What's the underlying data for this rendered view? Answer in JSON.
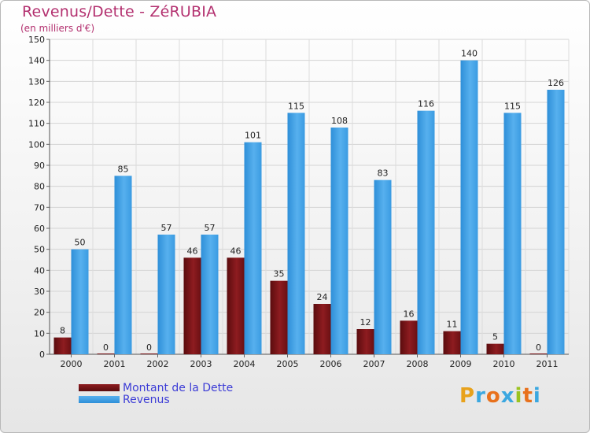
{
  "header": {
    "title": "Revenus/Dette - ZéRUBIA",
    "subtitle": "(en milliers d'€)"
  },
  "legend": {
    "debt_label": "Montant de la Dette",
    "revenue_label": "Revenus"
  },
  "logo": {
    "letters": [
      "P",
      "r",
      "o",
      "x",
      "i",
      "t",
      "i"
    ],
    "colors": [
      "#e8a21c",
      "#3aa7e0",
      "#e8711c",
      "#3aa7e0",
      "#9bc31f",
      "#e8711c",
      "#3aa7e0"
    ]
  },
  "colors": {
    "debt": "#7a1518",
    "revenue": "#3b9ee3",
    "title": "#b3306f",
    "legend_text": "#3c3cd6"
  },
  "chart_data": {
    "type": "bar",
    "title": "Revenus/Dette - ZéRUBIA",
    "subtitle": "(en milliers d'€)",
    "xlabel": "",
    "ylabel": "",
    "ylim": [
      0,
      150
    ],
    "yticks": [
      0,
      10,
      20,
      30,
      40,
      50,
      60,
      70,
      80,
      90,
      100,
      110,
      120,
      130,
      140,
      150
    ],
    "grid": true,
    "legend_position": "bottom-left",
    "categories": [
      "2000",
      "2001",
      "2002",
      "2003",
      "2004",
      "2005",
      "2006",
      "2007",
      "2008",
      "2009",
      "2010",
      "2011"
    ],
    "series": [
      {
        "name": "Montant de la Dette",
        "values": [
          8,
          0,
          0,
          46,
          46,
          35,
          24,
          12,
          16,
          11,
          5,
          0
        ]
      },
      {
        "name": "Revenus",
        "values": [
          50,
          85,
          57,
          57,
          101,
          115,
          108,
          83,
          116,
          140,
          115,
          126
        ]
      }
    ]
  }
}
